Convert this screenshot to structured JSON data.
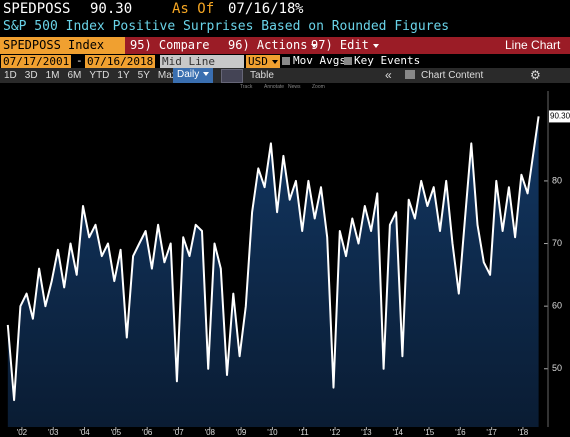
{
  "header": {
    "ticker": "SPEDPOSS",
    "last": "90.30",
    "as_of": "As Of",
    "date": "07/16/18",
    "unit": "%",
    "description": "S&P 500 Index Positive Surprises Based on Rounded Figures"
  },
  "toolbar": {
    "security": "SPEDPOSS Index",
    "compare": "95) Compare",
    "actions": "96) Actions",
    "edit": "97) Edit",
    "view": "Line Chart",
    "start": "07/17/2001",
    "sep": "-",
    "end": "07/16/2018",
    "mode": "Mid Line",
    "currency": "USD",
    "mov_avgs": "Mov Avgs",
    "key_events": "Key Events",
    "ranges": [
      "1D",
      "3D",
      "1M",
      "6M",
      "YTD",
      "1Y",
      "5Y",
      "Max"
    ],
    "period": "Daily",
    "table": "Table",
    "chart_content": "Chart Content",
    "tools": [
      "Track",
      "Annotate",
      "News",
      "Zoom"
    ]
  },
  "chart_data": {
    "type": "line",
    "color": "#ffffff",
    "area_color": "#123763",
    "x": [
      2001.55,
      2001.75,
      2001.95,
      2002.15,
      2002.35,
      2002.55,
      2002.75,
      2002.95,
      2003.15,
      2003.35,
      2003.55,
      2003.75,
      2003.95,
      2004.15,
      2004.35,
      2004.55,
      2004.75,
      2004.95,
      2005.15,
      2005.35,
      2005.55,
      2005.75,
      2005.95,
      2006.15,
      2006.35,
      2006.55,
      2006.75,
      2006.95,
      2007.15,
      2007.35,
      2007.55,
      2007.75,
      2007.95,
      2008.15,
      2008.35,
      2008.55,
      2008.75,
      2008.95,
      2009.15,
      2009.35,
      2009.55,
      2009.75,
      2009.95,
      2010.15,
      2010.35,
      2010.55,
      2010.75,
      2010.95,
      2011.15,
      2011.35,
      2011.55,
      2011.75,
      2011.95,
      2012.15,
      2012.35,
      2012.55,
      2012.75,
      2012.95,
      2013.15,
      2013.35,
      2013.55,
      2013.75,
      2013.95,
      2014.15,
      2014.35,
      2014.55,
      2014.75,
      2014.95,
      2015.15,
      2015.35,
      2015.55,
      2015.75,
      2015.95,
      2016.15,
      2016.35,
      2016.55,
      2016.75,
      2016.95,
      2017.15,
      2017.35,
      2017.55,
      2017.75,
      2017.95,
      2018.15,
      2018.5
    ],
    "values": [
      57,
      45,
      60,
      62,
      58,
      66,
      60,
      64,
      69,
      63,
      70,
      65,
      76,
      71,
      73,
      68,
      70,
      64,
      69,
      55,
      68,
      70,
      72,
      66,
      73,
      67,
      70,
      48,
      71,
      68,
      73,
      72,
      50,
      70,
      66,
      49,
      62,
      52,
      60,
      75,
      82,
      79,
      86,
      75,
      84,
      77,
      80,
      72,
      80,
      74,
      79,
      71,
      47,
      72,
      68,
      74,
      70,
      76,
      72,
      78,
      50,
      73,
      75,
      52,
      77,
      74,
      80,
      76,
      79,
      72,
      80,
      70,
      62,
      74,
      86,
      73,
      67,
      65,
      80,
      72,
      79,
      71,
      81,
      78,
      90.3
    ],
    "xlim": [
      2001.3,
      2018.8
    ],
    "ylim": [
      40.7,
      95
    ],
    "xticks": [
      {
        "value": 2002,
        "label": "'02"
      },
      {
        "value": 2003,
        "label": "'03"
      },
      {
        "value": 2004,
        "label": "'04"
      },
      {
        "value": 2005,
        "label": "'05"
      },
      {
        "value": 2006,
        "label": "'06"
      },
      {
        "value": 2007,
        "label": "'07"
      },
      {
        "value": 2008,
        "label": "'08"
      },
      {
        "value": 2009,
        "label": "'09"
      },
      {
        "value": 2010,
        "label": "'10"
      },
      {
        "value": 2011,
        "label": "'11"
      },
      {
        "value": 2012,
        "label": "'12"
      },
      {
        "value": 2013,
        "label": "'13"
      },
      {
        "value": 2014,
        "label": "'14"
      },
      {
        "value": 2015,
        "label": "'15"
      },
      {
        "value": 2016,
        "label": "'16"
      },
      {
        "value": 2017,
        "label": "'17"
      },
      {
        "value": 2018,
        "label": "'18"
      }
    ],
    "yticks": [
      50,
      60,
      70,
      80
    ]
  }
}
